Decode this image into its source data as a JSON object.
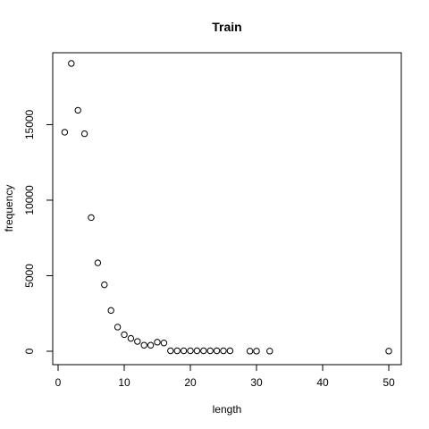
{
  "chart_data": {
    "type": "scatter",
    "title": "Train",
    "xlabel": "length",
    "ylabel": "frequency",
    "xlim": [
      0,
      51
    ],
    "ylim": [
      0,
      19600
    ],
    "x_ticks": [
      0,
      10,
      20,
      30,
      40,
      50
    ],
    "y_ticks": [
      0,
      5000,
      10000,
      15000
    ],
    "grid": false,
    "legend": "none",
    "points": [
      {
        "x": 1,
        "y": 14500
      },
      {
        "x": 2,
        "y": 19050
      },
      {
        "x": 3,
        "y": 15950
      },
      {
        "x": 4,
        "y": 14400
      },
      {
        "x": 5,
        "y": 8850
      },
      {
        "x": 6,
        "y": 5850
      },
      {
        "x": 7,
        "y": 4400
      },
      {
        "x": 8,
        "y": 2700
      },
      {
        "x": 9,
        "y": 1600
      },
      {
        "x": 10,
        "y": 1100
      },
      {
        "x": 11,
        "y": 850
      },
      {
        "x": 12,
        "y": 650
      },
      {
        "x": 13,
        "y": 400
      },
      {
        "x": 14,
        "y": 400
      },
      {
        "x": 15,
        "y": 600
      },
      {
        "x": 16,
        "y": 550
      },
      {
        "x": 17,
        "y": 30
      },
      {
        "x": 18,
        "y": 30
      },
      {
        "x": 19,
        "y": 30
      },
      {
        "x": 20,
        "y": 30
      },
      {
        "x": 21,
        "y": 30
      },
      {
        "x": 22,
        "y": 30
      },
      {
        "x": 23,
        "y": 30
      },
      {
        "x": 24,
        "y": 30
      },
      {
        "x": 25,
        "y": 30
      },
      {
        "x": 26,
        "y": 30
      },
      {
        "x": 29,
        "y": 10
      },
      {
        "x": 30,
        "y": 10
      },
      {
        "x": 32,
        "y": 10
      },
      {
        "x": 50,
        "y": 10
      }
    ]
  }
}
